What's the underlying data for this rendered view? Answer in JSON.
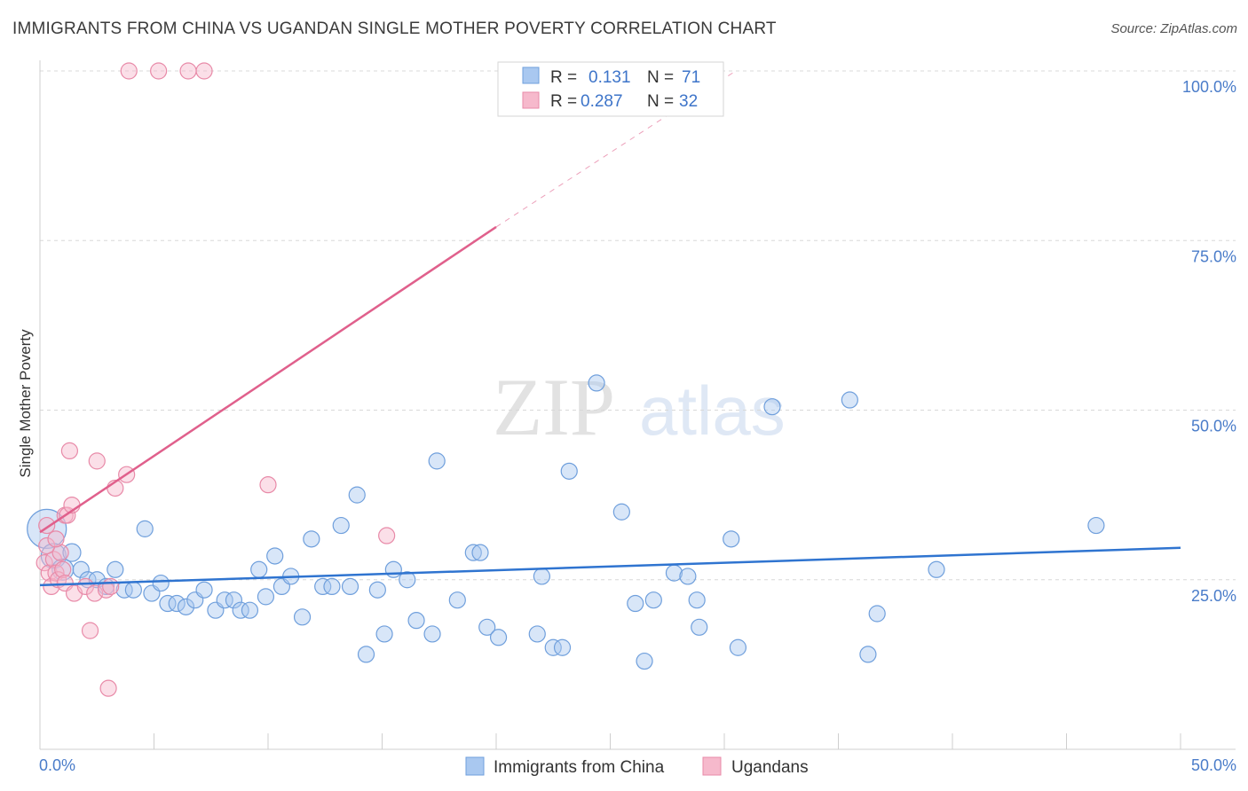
{
  "title": "IMMIGRANTS FROM CHINA VS UGANDAN SINGLE MOTHER POVERTY CORRELATION CHART",
  "source": "Source: ZipAtlas.com",
  "watermark": {
    "zip": "ZIP",
    "atlas": "atlas"
  },
  "colors": {
    "china_fill": "#a9c8f0",
    "china_stroke": "#6f9fdc",
    "china_line": "#2f74d0",
    "uganda_fill": "#f6b9cc",
    "uganda_stroke": "#e88aa8",
    "uganda_line": "#e0608c",
    "tick_label": "#4a7cc9",
    "grid": "#d8d8d8"
  },
  "legend": {
    "r_label": "R =",
    "n_label": "N =",
    "rows": [
      {
        "r": "0.131",
        "n": "71"
      },
      {
        "r": "0.287",
        "n": "32"
      }
    ]
  },
  "chart_data": {
    "type": "scatter",
    "title": "IMMIGRANTS FROM CHINA VS UGANDAN SINGLE MOTHER POVERTY CORRELATION CHART",
    "xlabel": "",
    "ylabel": "Single Mother Poverty",
    "xlim": [
      0,
      50
    ],
    "ylim": [
      0,
      100
    ],
    "x_tick_labels": [
      "0.0%",
      "50.0%"
    ],
    "y_ticks": [
      25,
      50,
      75,
      100
    ],
    "y_tick_labels": [
      "25.0%",
      "50.0%",
      "75.0%",
      "100.0%"
    ],
    "grid": true,
    "legend_position": "bottom",
    "series": [
      {
        "name": "Immigrants from China",
        "r": 0.131,
        "n": 71,
        "trend": {
          "x": [
            0,
            50
          ],
          "y": [
            24.2,
            29.7
          ]
        },
        "points": [
          [
            0.3,
            32.5,
            22
          ],
          [
            0.6,
            28.5,
            14
          ],
          [
            1.0,
            26.5,
            12
          ],
          [
            1.4,
            29.0,
            10
          ],
          [
            1.8,
            26.5,
            9
          ],
          [
            2.1,
            25.0,
            9
          ],
          [
            2.5,
            25.0,
            9
          ],
          [
            2.9,
            24.0,
            9
          ],
          [
            3.3,
            26.5,
            9
          ],
          [
            3.7,
            23.5,
            9
          ],
          [
            4.1,
            23.5,
            9
          ],
          [
            4.6,
            32.5,
            9
          ],
          [
            4.9,
            23.0,
            9
          ],
          [
            5.3,
            24.5,
            9
          ],
          [
            5.6,
            21.5,
            9
          ],
          [
            6.0,
            21.5,
            9
          ],
          [
            6.4,
            21.0,
            9
          ],
          [
            6.8,
            22.0,
            9
          ],
          [
            7.2,
            23.5,
            9
          ],
          [
            7.7,
            20.5,
            9
          ],
          [
            8.1,
            22.0,
            9
          ],
          [
            8.5,
            22.0,
            9
          ],
          [
            8.8,
            20.5,
            9
          ],
          [
            9.2,
            20.5,
            9
          ],
          [
            9.6,
            26.5,
            9
          ],
          [
            9.9,
            22.5,
            9
          ],
          [
            10.3,
            28.5,
            9
          ],
          [
            10.6,
            24.0,
            9
          ],
          [
            11.0,
            25.5,
            9
          ],
          [
            11.5,
            19.5,
            9
          ],
          [
            11.9,
            31.0,
            9
          ],
          [
            12.4,
            24.0,
            9
          ],
          [
            12.8,
            24.0,
            9
          ],
          [
            13.2,
            33.0,
            9
          ],
          [
            13.6,
            24.0,
            9
          ],
          [
            13.9,
            37.5,
            9
          ],
          [
            14.3,
            14.0,
            9
          ],
          [
            14.8,
            23.5,
            9
          ],
          [
            15.1,
            17.0,
            9
          ],
          [
            15.5,
            26.5,
            9
          ],
          [
            16.1,
            25.0,
            9
          ],
          [
            16.5,
            19.0,
            9
          ],
          [
            17.2,
            17.0,
            9
          ],
          [
            17.4,
            42.5,
            9
          ],
          [
            18.3,
            22.0,
            9
          ],
          [
            19.0,
            29.0,
            9
          ],
          [
            19.3,
            29.0,
            9
          ],
          [
            19.6,
            18.0,
            9
          ],
          [
            20.1,
            16.5,
            9
          ],
          [
            21.8,
            17.0,
            9
          ],
          [
            22.0,
            25.5,
            9
          ],
          [
            22.5,
            15.0,
            9
          ],
          [
            22.9,
            15.0,
            9
          ],
          [
            23.2,
            41.0,
            9
          ],
          [
            24.4,
            54.0,
            9
          ],
          [
            25.5,
            35.0,
            9
          ],
          [
            26.1,
            21.5,
            9
          ],
          [
            26.5,
            13.0,
            9
          ],
          [
            26.9,
            22.0,
            9
          ],
          [
            27.8,
            26.0,
            9
          ],
          [
            28.4,
            25.5,
            9
          ],
          [
            28.8,
            22.0,
            9
          ],
          [
            28.9,
            18.0,
            9
          ],
          [
            30.3,
            31.0,
            9
          ],
          [
            30.6,
            15.0,
            9
          ],
          [
            32.1,
            50.5,
            9
          ],
          [
            35.5,
            51.5,
            9
          ],
          [
            36.3,
            14.0,
            9
          ],
          [
            36.7,
            20.0,
            9
          ],
          [
            39.3,
            26.5,
            9
          ],
          [
            46.3,
            33.0,
            9
          ]
        ]
      },
      {
        "name": "Ugandans",
        "r": 0.287,
        "n": 32,
        "trend": {
          "x": [
            0,
            20
          ],
          "y": [
            32.0,
            77.0
          ]
        },
        "trend_dashed": {
          "x": [
            20,
            30.5
          ],
          "y": [
            77.0,
            100.0
          ]
        },
        "points": [
          [
            0.2,
            27.5,
            9
          ],
          [
            0.3,
            33.0,
            9
          ],
          [
            0.4,
            26.0,
            9
          ],
          [
            0.5,
            24.0,
            9
          ],
          [
            0.6,
            28.0,
            9
          ],
          [
            0.7,
            26.0,
            9
          ],
          [
            0.8,
            25.0,
            9
          ],
          [
            0.9,
            29.0,
            9
          ],
          [
            1.0,
            26.5,
            9
          ],
          [
            1.1,
            24.5,
            9
          ],
          [
            1.1,
            34.5,
            9
          ],
          [
            1.2,
            34.5,
            9
          ],
          [
            1.3,
            44.0,
            9
          ],
          [
            1.4,
            36.0,
            9
          ],
          [
            1.5,
            23.0,
            9
          ],
          [
            2.0,
            24.0,
            9
          ],
          [
            2.2,
            17.5,
            9
          ],
          [
            2.4,
            23.0,
            9
          ],
          [
            2.5,
            42.5,
            9
          ],
          [
            2.9,
            23.5,
            9
          ],
          [
            3.0,
            9.0,
            9
          ],
          [
            3.1,
            24.0,
            9
          ],
          [
            3.3,
            38.5,
            9
          ],
          [
            3.8,
            40.5,
            9
          ],
          [
            3.9,
            100.0,
            9
          ],
          [
            5.2,
            100.0,
            9
          ],
          [
            6.5,
            100.0,
            9
          ],
          [
            7.2,
            100.0,
            9
          ],
          [
            10.0,
            39.0,
            9
          ],
          [
            15.2,
            31.5,
            9
          ],
          [
            0.3,
            30.0,
            9
          ],
          [
            0.7,
            31.0,
            9
          ]
        ]
      }
    ]
  },
  "bottom_legend": [
    {
      "label": "Immigrants from China"
    },
    {
      "label": "Ugandans"
    }
  ]
}
